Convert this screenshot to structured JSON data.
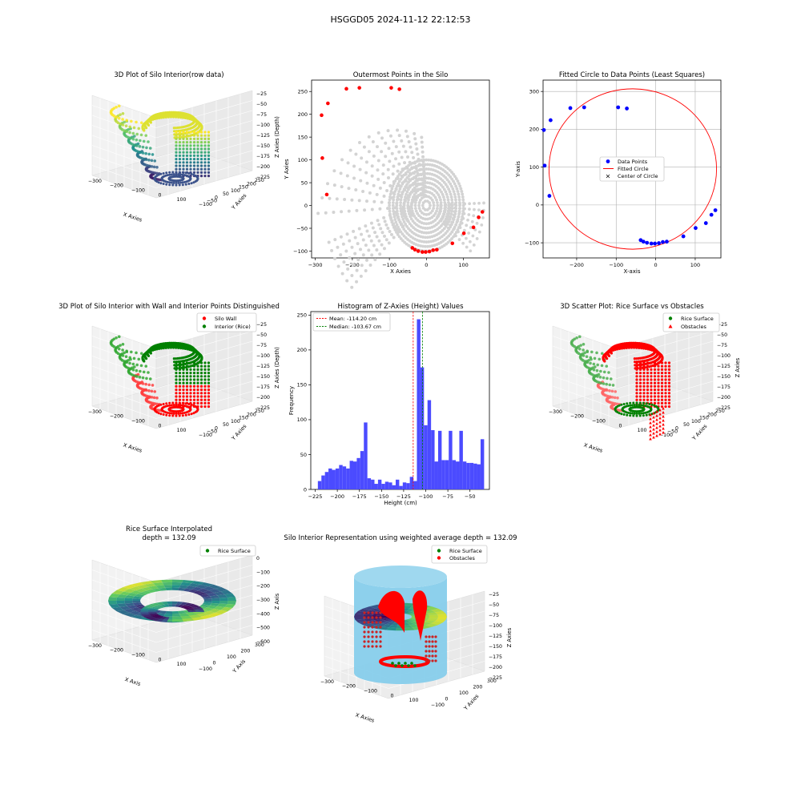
{
  "figure_title": "HSGGD05 2024-11-12 22:12:53",
  "chart_data": [
    {
      "id": "p1",
      "type": "scatter3d",
      "title": "3D Plot of Silo Interior(row data)",
      "xlabel": "X Axies",
      "ylabel": "Y Axies",
      "zlabel": "Z Axies (Depth)",
      "xticks": [
        "-300",
        "-200",
        "-100",
        "0",
        "100"
      ],
      "yticks": [
        "-100",
        "-50",
        "0",
        "50",
        "100",
        "150",
        "200",
        "250"
      ],
      "zticks": [
        "-25",
        "-50",
        "-75",
        "-100",
        "-125",
        "-150",
        "-175",
        "-200",
        "-225"
      ],
      "colormap": "viridis"
    },
    {
      "id": "p2",
      "type": "scatter",
      "title": "Outermost Points in the Silo",
      "xlabel": "X Axies",
      "ylabel": "Y Axies",
      "xlim": [
        -310,
        170
      ],
      "ylim": [
        -115,
        275
      ],
      "xticks": [
        -300,
        -200,
        -100,
        0,
        100
      ],
      "yticks": [
        -100,
        -50,
        0,
        50,
        100,
        150,
        200,
        250
      ],
      "series": [
        {
          "color": "#d3d3d3",
          "values": []
        },
        {
          "color": "#ff0000",
          "values": [
            [
              -266,
              224
            ],
            [
              -283,
              198
            ],
            [
              -281,
              104
            ],
            [
              -269,
              24
            ],
            [
              -216,
              256
            ],
            [
              -181,
              258
            ],
            [
              -95,
              258
            ],
            [
              -73,
              255
            ],
            [
              151,
              -14
            ],
            [
              141,
              -26
            ],
            [
              127,
              -48
            ],
            [
              101,
              -61
            ],
            [
              70,
              -83
            ],
            [
              28,
              -97
            ],
            [
              18,
              -98
            ],
            [
              8,
              -101
            ],
            [
              -2,
              -102
            ],
            [
              -11,
              -102
            ],
            [
              -22,
              -100
            ],
            [
              -31,
              -97
            ],
            [
              -38,
              -93
            ]
          ]
        }
      ]
    },
    {
      "id": "p3",
      "type": "scatter",
      "title": "Fitted Circle to Data Points (Least Squares)",
      "xlabel": "X-axis",
      "ylabel": "Y-axis",
      "xlim": [
        -285,
        165
      ],
      "ylim": [
        -140,
        330
      ],
      "xticks": [
        -200,
        -100,
        0,
        100
      ],
      "yticks": [
        -100,
        0,
        100,
        200,
        300
      ],
      "grid": true,
      "legend": {
        "position": "center",
        "items": [
          "Data Points",
          "Fitted Circle",
          "Center of Circle"
        ]
      },
      "circle": {
        "cx": -58,
        "cy": 95,
        "r": 212,
        "color": "#ff0000"
      },
      "center_color": "#008000",
      "series": [
        {
          "name": "Data Points",
          "color": "#0000ff",
          "values": [
            [
              -266,
              224
            ],
            [
              -283,
              198
            ],
            [
              -281,
              104
            ],
            [
              -269,
              24
            ],
            [
              -216,
              256
            ],
            [
              -181,
              258
            ],
            [
              -95,
              258
            ],
            [
              -73,
              255
            ],
            [
              151,
              -14
            ],
            [
              141,
              -26
            ],
            [
              127,
              -48
            ],
            [
              101,
              -61
            ],
            [
              70,
              -83
            ],
            [
              28,
              -97
            ],
            [
              18,
              -98
            ],
            [
              8,
              -101
            ],
            [
              -2,
              -102
            ],
            [
              -11,
              -102
            ],
            [
              -22,
              -100
            ],
            [
              -31,
              -97
            ],
            [
              -38,
              -93
            ]
          ]
        }
      ]
    },
    {
      "id": "p4",
      "type": "scatter3d",
      "title": "3D Plot of Silo Interior with Wall and Interior Points Distinguished",
      "xlabel": "X Axies",
      "ylabel": "Y Axies",
      "zlabel": "Z Axies (Depth)",
      "xticks": [
        "-300",
        "-200",
        "-100",
        "0",
        "100"
      ],
      "yticks": [
        "-100",
        "-50",
        "0",
        "50",
        "100",
        "150",
        "200",
        "250"
      ],
      "zticks": [
        "-25",
        "-50",
        "-75",
        "-100",
        "-125",
        "-150",
        "-175",
        "-200",
        "-225"
      ],
      "legend": {
        "position": "top-right",
        "items": [
          {
            "label": "Silo Wall",
            "color": "#ff0000",
            "marker": "circle"
          },
          {
            "label": "Interior (Rice)",
            "color": "#008000",
            "marker": "circle"
          }
        ]
      }
    },
    {
      "id": "p5",
      "type": "bar",
      "title": "Histogram of Z-Axies (Height) Values",
      "xlabel": "Height (cm)",
      "ylabel": "Frequency",
      "xlim": [
        -230,
        -28
      ],
      "ylim": [
        0,
        255
      ],
      "xticks": [
        -225,
        -200,
        -175,
        -150,
        -125,
        -100,
        -75,
        -50
      ],
      "yticks": [
        0,
        50,
        100,
        150,
        200,
        250
      ],
      "bar_color": "#4b4bff",
      "bin_start": -222,
      "bin_width": 4,
      "values": [
        12,
        20,
        25,
        30,
        28,
        30,
        35,
        33,
        30,
        41,
        40,
        45,
        55,
        96,
        16,
        14,
        8,
        14,
        8,
        11,
        10,
        6,
        14,
        5,
        10,
        9,
        18,
        12,
        244,
        175,
        92,
        128,
        85,
        40,
        84,
        42,
        42,
        84,
        42,
        40,
        84,
        40,
        38,
        38,
        37,
        36,
        72
      ],
      "mean": -114.2,
      "median": -103.67,
      "legend": {
        "position": "top-left",
        "items": [
          {
            "label": "Mean: -114.20 cm",
            "color": "#ff0000"
          },
          {
            "label": "Median: -103.67 cm",
            "color": "#008000"
          }
        ]
      }
    },
    {
      "id": "p6",
      "type": "scatter3d",
      "title": "3D Scatter Plot: Rice Surface vs Obstacles",
      "xlabel": "X Axies",
      "ylabel": "Y Axies",
      "zlabel": "Z Axies",
      "xticks": [
        "-300",
        "-200",
        "-100",
        "0",
        "100"
      ],
      "yticks": [
        "-100",
        "-50",
        "0",
        "50",
        "100",
        "150",
        "200",
        "250"
      ],
      "zticks": [
        "-25",
        "-50",
        "-75",
        "-100",
        "-125",
        "-150",
        "-175",
        "-200",
        "-225"
      ],
      "legend": {
        "position": "top-right",
        "items": [
          {
            "label": "Rice Surface",
            "color": "#008000",
            "marker": "circle"
          },
          {
            "label": "Obstacles",
            "color": "#ff0000",
            "marker": "triangle"
          }
        ]
      }
    },
    {
      "id": "p7",
      "type": "surface3d",
      "title": "Rice Surface Interpolated",
      "subtitle": "depth = 132.09",
      "xlabel": "X Axis",
      "ylabel": "Y Axis",
      "zlabel": "Z Axis",
      "xticks": [
        "-300",
        "-200",
        "-100",
        "0",
        "100"
      ],
      "yticks": [
        "-100",
        "0",
        "100",
        "200",
        "300"
      ],
      "zticks": [
        "0",
        "-100",
        "-200",
        "-300",
        "-400",
        "-500",
        "-600"
      ],
      "legend": {
        "position": "top-right",
        "items": [
          {
            "label": "Rice Surface",
            "color": "#008000",
            "marker": "circle"
          }
        ]
      }
    },
    {
      "id": "p8",
      "type": "surface3d",
      "title": "Silo Interior Representation using weighted average depth = 132.09",
      "xlabel": "X Axies",
      "ylabel": "Y Axies",
      "zlabel": "Z Axies",
      "xticks": [
        "-300",
        "-200",
        "-100",
        "0",
        "100"
      ],
      "yticks": [
        "-100",
        "0",
        "100",
        "200",
        "300"
      ],
      "zticks": [
        "-25",
        "-50",
        "-75",
        "-100",
        "-125",
        "-150",
        "-175",
        "-200",
        "-225"
      ],
      "cylinder_color": "#87ceeb",
      "legend": {
        "position": "top-center",
        "items": [
          {
            "label": "Rice Surface",
            "color": "#008000",
            "marker": "circle"
          },
          {
            "label": "Obstacles",
            "color": "#ff0000",
            "marker": "circle"
          }
        ]
      }
    }
  ]
}
